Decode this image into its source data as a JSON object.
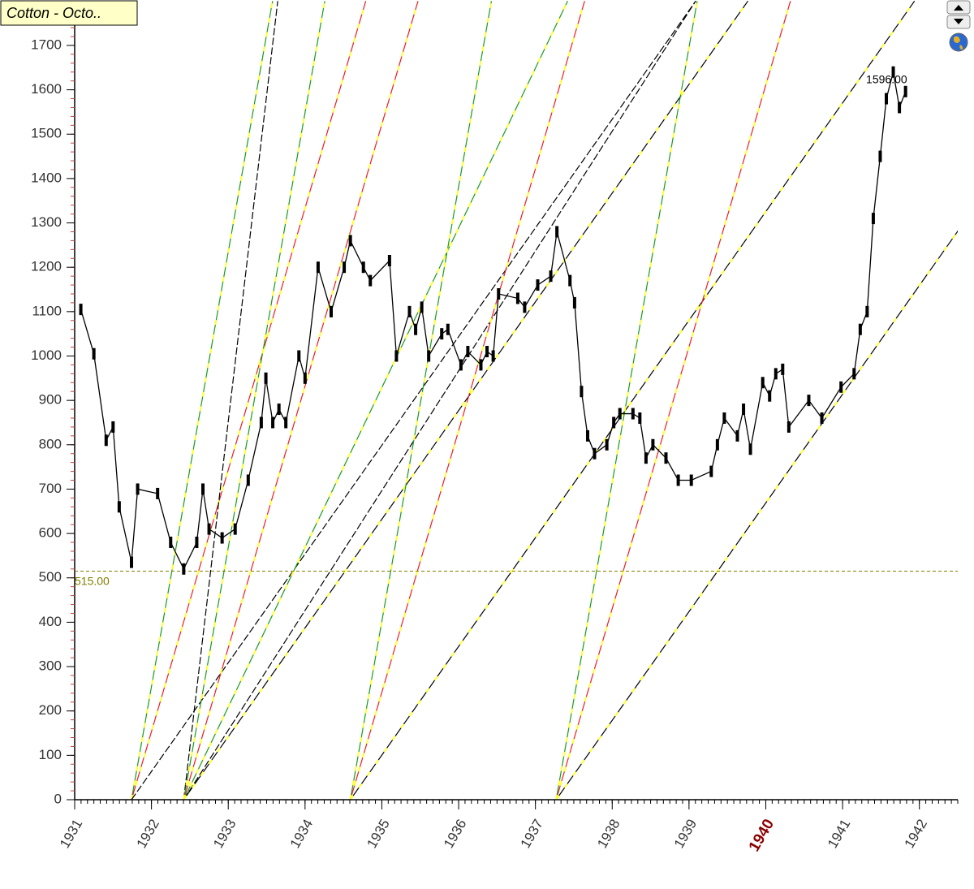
{
  "chart_data": {
    "type": "line",
    "title": "Cotton - Octo..",
    "x": [
      1931.08,
      1931.25,
      1931.41,
      1931.5,
      1931.58,
      1931.74,
      1931.82,
      1932.08,
      1932.25,
      1932.42,
      1932.59,
      1932.67,
      1932.75,
      1932.92,
      1933.09,
      1933.26,
      1933.43,
      1933.49,
      1933.58,
      1933.66,
      1933.75,
      1933.92,
      1934.0,
      1934.17,
      1934.34,
      1934.51,
      1934.59,
      1934.76,
      1934.85,
      1935.1,
      1935.19,
      1935.36,
      1935.44,
      1935.52,
      1935.61,
      1935.78,
      1935.86,
      1936.03,
      1936.12,
      1936.29,
      1936.37,
      1936.45,
      1936.52,
      1936.77,
      1936.86,
      1937.03,
      1937.2,
      1937.28,
      1937.45,
      1937.51,
      1937.6,
      1937.68,
      1937.77,
      1937.93,
      1938.02,
      1938.1,
      1938.27,
      1938.36,
      1938.44,
      1938.53,
      1938.7,
      1938.86,
      1939.03,
      1939.29,
      1939.37,
      1939.46,
      1939.63,
      1939.71,
      1939.8,
      1939.96,
      1940.05,
      1940.13,
      1940.22,
      1940.3,
      1940.56,
      1940.73,
      1940.98,
      1941.15,
      1941.23,
      1941.32,
      1941.4,
      1941.49,
      1941.57,
      1941.66,
      1941.74,
      1941.82
    ],
    "series": [
      {
        "color": "#000000",
        "values": [
          1105,
          1005,
          810,
          840,
          660,
          535,
          700,
          690,
          580,
          520,
          580,
          700,
          610,
          590,
          610,
          720,
          850,
          950,
          850,
          880,
          850,
          1000,
          950,
          1200,
          1100,
          1200,
          1260,
          1200,
          1170,
          1215,
          1000,
          1100,
          1060,
          1110,
          1000,
          1050,
          1060,
          980,
          1010,
          980,
          1010,
          1000,
          1140,
          1130,
          1110,
          1160,
          1180,
          1280,
          1170,
          1120,
          920,
          820,
          780,
          800,
          850,
          870,
          870,
          860,
          770,
          800,
          770,
          720,
          720,
          740,
          800,
          860,
          820,
          880,
          790,
          940,
          910,
          960,
          970,
          840,
          900,
          860,
          930,
          960,
          1060,
          1100,
          1310,
          1450,
          1580,
          1640,
          1560,
          1596
        ],
        "last_value_label": "1596.00"
      }
    ],
    "xlim": [
      1931,
      1942.5
    ],
    "ylim": [
      0,
      1800
    ],
    "xticks": [
      1931,
      1932,
      1933,
      1934,
      1935,
      1936,
      1937,
      1938,
      1939,
      1940,
      1941,
      1942
    ],
    "xtick_highlight": 1940,
    "yticks": [
      0,
      100,
      200,
      300,
      400,
      500,
      600,
      700,
      800,
      900,
      1000,
      1100,
      1200,
      1300,
      1400,
      1500,
      1600,
      1700
    ],
    "reference_line": {
      "value": 515,
      "label": "515.00",
      "color": "#808000"
    },
    "fans": [
      {
        "x": 1931.74,
        "lines": [
          {
            "slope": 980,
            "color": "#1a9a1a",
            "dash": true
          },
          {
            "slope": 590,
            "color": "#e82020",
            "dash": true
          },
          {
            "slope": 245,
            "color": "#000000",
            "dash": false
          }
        ]
      },
      {
        "x": 1932.42,
        "lines": [
          {
            "slope": 1470,
            "color": "#000000",
            "dash": false
          },
          {
            "slope": 980,
            "color": "#1a9a1a",
            "dash": true
          },
          {
            "slope": 590,
            "color": "#e82020",
            "dash": true
          },
          {
            "slope": 360,
            "color": "#1a9a1a",
            "dash": true
          },
          {
            "slope": 270,
            "color": "#000000",
            "dash": false
          },
          {
            "slope": 245,
            "color": "#000000",
            "dash": true
          }
        ]
      },
      {
        "x": 1934.59,
        "lines": [
          {
            "slope": 980,
            "color": "#1a9a1a",
            "dash": true
          },
          {
            "slope": 590,
            "color": "#e82020",
            "dash": true
          },
          {
            "slope": 245,
            "color": "#000000",
            "dash": true
          }
        ]
      },
      {
        "x": 1937.27,
        "lines": [
          {
            "slope": 980,
            "color": "#1a9a1a",
            "dash": true
          },
          {
            "slope": 590,
            "color": "#e82020",
            "dash": true
          },
          {
            "slope": 245,
            "color": "#000000",
            "dash": true
          }
        ]
      }
    ]
  }
}
